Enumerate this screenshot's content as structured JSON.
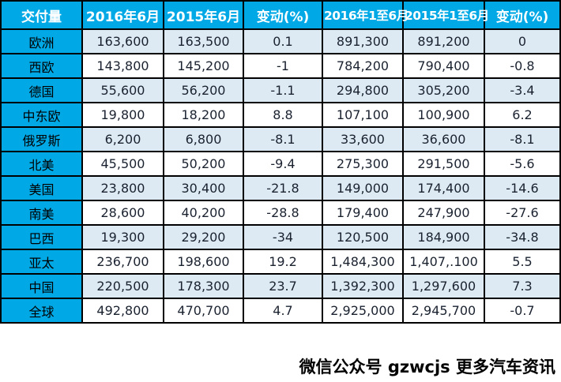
{
  "chart_data": {
    "type": "table",
    "title": "交付量",
    "columns": [
      "交付量",
      "2016年6月",
      "2015年6月",
      "变动(%)",
      "2016年1至6月",
      "2015年1至6月",
      "变动(%)"
    ],
    "rows": [
      [
        "欧洲",
        "163,600",
        "163,500",
        "0.1",
        "891,300",
        "891,200",
        "0"
      ],
      [
        "西欧",
        "143,800",
        "145,200",
        "-1",
        "784,200",
        "790,400",
        "-0.8"
      ],
      [
        "德国",
        "55,600",
        "56,200",
        "-1.1",
        "294,800",
        "305,200",
        "-3.4"
      ],
      [
        "中东欧",
        "19,800",
        "18,200",
        "8.8",
        "107,100",
        "100,900",
        "6.2"
      ],
      [
        "俄罗斯",
        "6,200",
        "6,800",
        "-8.1",
        "33,600",
        "36,600",
        "-8.1"
      ],
      [
        "北美",
        "45,500",
        "50,200",
        "-9.4",
        "275,300",
        "291,500",
        "-5.6"
      ],
      [
        "美国",
        "23,800",
        "30,400",
        "-21.8",
        "149,000",
        "174,400",
        "-14.6"
      ],
      [
        "南美",
        "28,600",
        "40,200",
        "-28.8",
        "179,400",
        "247,900",
        "-27.6"
      ],
      [
        "巴西",
        "19,300",
        "29,200",
        "-34",
        "120,500",
        "184,900",
        "-34.8"
      ],
      [
        "亚太",
        "236,700",
        "198,600",
        "19.2",
        "1,484,300",
        "1,407,.100",
        "5.5"
      ],
      [
        "中国",
        "220,500",
        "178,300",
        "23.7",
        "1,392,300",
        "1,297,600",
        "7.3"
      ],
      [
        "全球",
        "492,800",
        "470,700",
        "4.7",
        "2,925,000",
        "2,945,700",
        "-0.7"
      ]
    ],
    "layout": {
      "stripe_pattern": "odd rows light blue, even rows white",
      "first_column_style": "solid cyan like header"
    }
  },
  "footer": {
    "watermark": "微信公众号 gzwcjs 更多汽车资讯"
  },
  "colors": {
    "header_bg": "#00a9e6",
    "header_text": "#ffffff",
    "row_alt_bg": "#ddeaf4",
    "row_bg": "#ffffff",
    "border": "#000000",
    "cell_text": "#1a2230",
    "watermark_text": "#000000"
  }
}
